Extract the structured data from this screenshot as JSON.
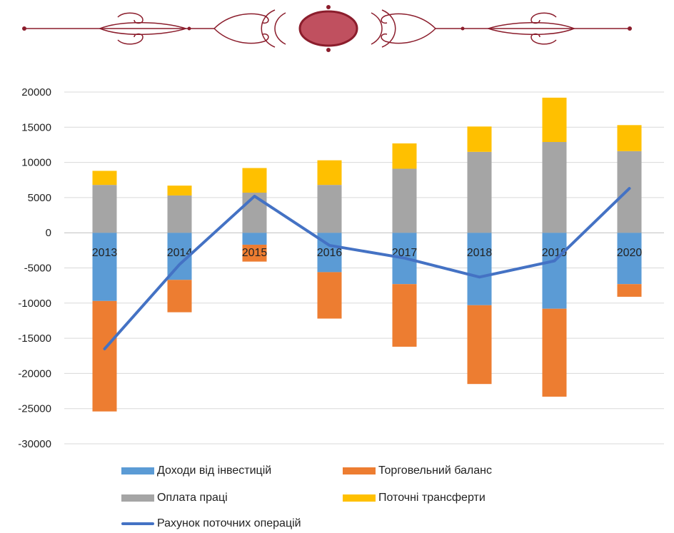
{
  "colors": {
    "ornament": "#8b1d2c",
    "ornament_fill": "#c0505f",
    "gridline": "#d9d9d9",
    "axis": "#bfbfbf",
    "investments": "#5b9bd5",
    "trade": "#ed7d31",
    "labor": "#a5a5a5",
    "transfers": "#ffc000",
    "current_account": "#4472c4"
  },
  "chart_data": {
    "type": "bar",
    "stacked": true,
    "categories": [
      "2013",
      "2014",
      "2015",
      "2016",
      "2017",
      "2018",
      "2019",
      "2020"
    ],
    "series": [
      {
        "name": "Доходи від інвестицій",
        "type": "bar",
        "color_key": "investments",
        "values": [
          -9700,
          -6700,
          -1700,
          -5600,
          -7300,
          -10300,
          -10800,
          -7300
        ]
      },
      {
        "name": "Торговельний баланс",
        "type": "bar",
        "color_key": "trade",
        "values": [
          -15700,
          -4600,
          -2400,
          -6600,
          -8900,
          -11200,
          -12500,
          -1800
        ]
      },
      {
        "name": "Оплата праці",
        "type": "bar",
        "color_key": "labor",
        "values": [
          6800,
          5300,
          5700,
          6800,
          9100,
          11500,
          12900,
          11600
        ]
      },
      {
        "name": "Поточні трансферти",
        "type": "bar",
        "color_key": "transfers",
        "values": [
          2000,
          1400,
          3500,
          3500,
          3600,
          3600,
          6300,
          3700
        ]
      },
      {
        "name": "Рахунок поточних операцій",
        "type": "line",
        "color_key": "current_account",
        "values": [
          -16500,
          -4500,
          5200,
          -1800,
          -3600,
          -6300,
          -4000,
          6300
        ]
      }
    ],
    "yticks": [
      "20000",
      "15000",
      "10000",
      "5000",
      "0",
      "-5000",
      "-10000",
      "-15000",
      "-20000",
      "-25000",
      "-30000"
    ],
    "ylim": [
      -30000,
      20000
    ],
    "grid": true,
    "legend_position": "bottom"
  },
  "legend": [
    {
      "label": "Доходи від інвестицій",
      "color_key": "investments",
      "kind": "bar"
    },
    {
      "label": "Торговельний баланс",
      "color_key": "trade",
      "kind": "bar"
    },
    {
      "label": "Оплата праці",
      "color_key": "labor",
      "kind": "bar"
    },
    {
      "label": "Поточні трансферти",
      "color_key": "transfers",
      "kind": "bar"
    },
    {
      "label": "Рахунок поточних операцій",
      "color_key": "current_account",
      "kind": "line"
    }
  ]
}
